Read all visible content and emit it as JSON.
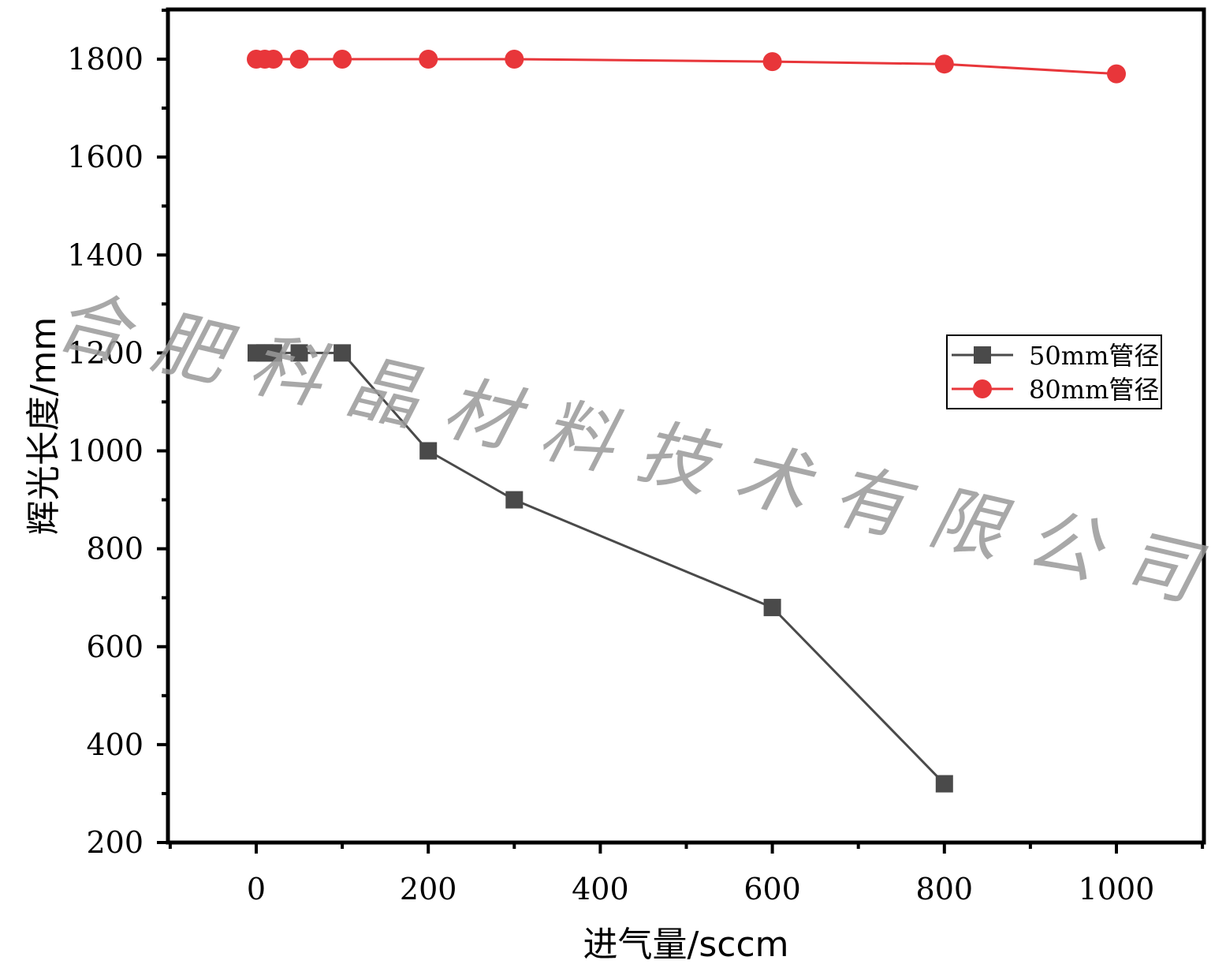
{
  "chart_data": {
    "type": "line",
    "title": "",
    "xlabel": "进气量/sccm",
    "ylabel": "辉光长度/mm",
    "xlim": [
      -100,
      1100
    ],
    "ylim": [
      200,
      1900
    ],
    "x_ticks": [
      0,
      200,
      400,
      600,
      800,
      1000
    ],
    "y_ticks": [
      200,
      400,
      600,
      800,
      1000,
      1200,
      1400,
      1600,
      1800
    ],
    "legend_position": "right-middle",
    "series": [
      {
        "name": "50mm管径",
        "color": "#4a4a4a",
        "marker": "square",
        "x": [
          0,
          10,
          20,
          50,
          100,
          200,
          300,
          600,
          800
        ],
        "y": [
          1200,
          1200,
          1200,
          1200,
          1200,
          1000,
          900,
          680,
          320
        ]
      },
      {
        "name": "80mm管径",
        "color": "#e8363a",
        "marker": "circle",
        "x": [
          0,
          10,
          20,
          50,
          100,
          200,
          300,
          600,
          800,
          1000
        ],
        "y": [
          1800,
          1800,
          1800,
          1800,
          1800,
          1800,
          1800,
          1795,
          1790,
          1770
        ]
      }
    ]
  },
  "watermark": {
    "chars": [
      "合",
      "肥",
      "科",
      "晶",
      "材",
      "料",
      "技",
      "术",
      "有",
      "限",
      "公",
      "司"
    ]
  }
}
